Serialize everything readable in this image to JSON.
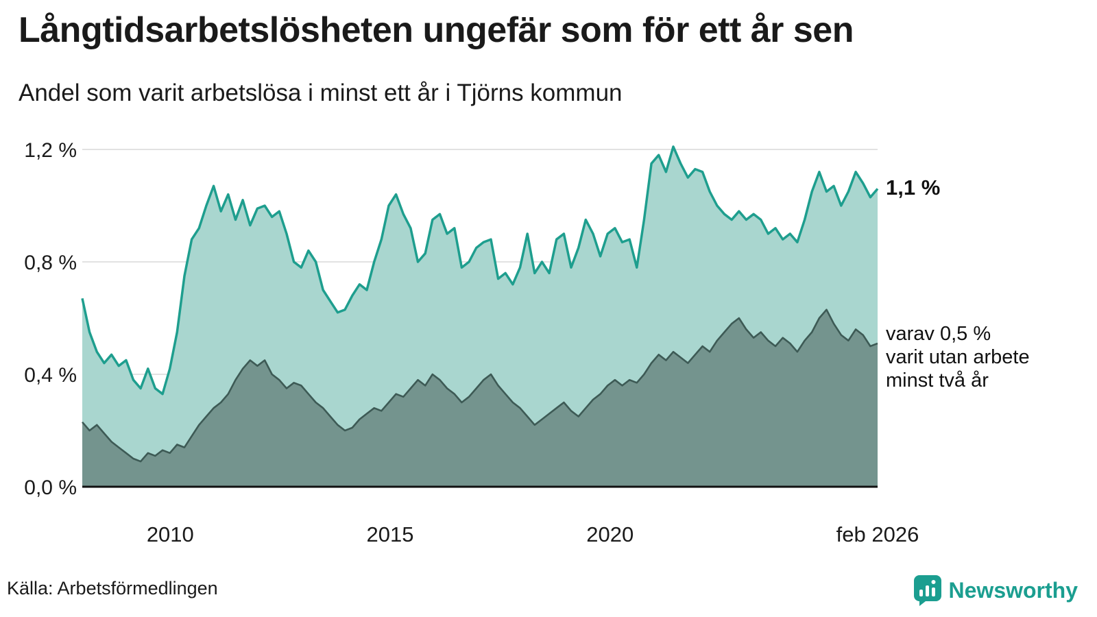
{
  "header": {
    "title": "Långtidsarbetslösheten ungefär som för ett år sen",
    "subtitle": "Andel som varit arbetslösa i minst ett år i Tjörns kommun"
  },
  "annotations": {
    "total_end": "1,1 %",
    "long_line1": "varav 0,5 %",
    "long_line2": "varit utan arbete",
    "long_line3": "minst två år"
  },
  "footer": {
    "source": "Källa: Arbetsförmedlingen",
    "brand": "Newsworthy"
  },
  "colors": {
    "teal_line": "#1e9e8e",
    "teal_fill": "#a9d6cf",
    "dark_line": "#3d5a55",
    "dark_fill": "#74948e",
    "grid": "#d8d8d8",
    "axis": "#111111",
    "text": "#1a1a1a",
    "brand": "#1b9e90"
  },
  "chart_data": {
    "type": "area",
    "title": "Långtidsarbetslösheten ungefär som för ett år sen",
    "subtitle": "Andel som varit arbetslösa i minst ett år i Tjörns kommun",
    "unit": "%",
    "x_start": 2008.0,
    "x_end": 2026.083,
    "ylim": [
      0,
      1.25
    ],
    "grid": true,
    "y_ticks": [
      {
        "value": 1.2,
        "label": "1,2 %"
      },
      {
        "value": 0.8,
        "label": "0,8 %"
      },
      {
        "value": 0.4,
        "label": "0,4 %"
      },
      {
        "value": 0.0,
        "label": "0,0 %"
      }
    ],
    "x_ticks": [
      {
        "value": 2010,
        "label": "2010"
      },
      {
        "value": 2015,
        "label": "2015"
      },
      {
        "value": 2020,
        "label": "2020"
      },
      {
        "value": 2026.083,
        "label": "feb 2026"
      }
    ],
    "series": [
      {
        "name": "Andel som varit arbetslösa minst ett år",
        "end_value_label": "1,1 %",
        "values": [
          0.67,
          0.55,
          0.48,
          0.44,
          0.47,
          0.43,
          0.45,
          0.38,
          0.35,
          0.42,
          0.35,
          0.33,
          0.42,
          0.55,
          0.75,
          0.88,
          0.92,
          1.0,
          1.07,
          0.98,
          1.04,
          0.95,
          1.02,
          0.93,
          0.99,
          1.0,
          0.96,
          0.98,
          0.9,
          0.8,
          0.78,
          0.84,
          0.8,
          0.7,
          0.66,
          0.62,
          0.63,
          0.68,
          0.72,
          0.7,
          0.8,
          0.88,
          1.0,
          1.04,
          0.97,
          0.92,
          0.8,
          0.83,
          0.95,
          0.97,
          0.9,
          0.92,
          0.78,
          0.8,
          0.85,
          0.87,
          0.88,
          0.74,
          0.76,
          0.72,
          0.78,
          0.9,
          0.76,
          0.8,
          0.76,
          0.88,
          0.9,
          0.78,
          0.85,
          0.95,
          0.9,
          0.82,
          0.9,
          0.92,
          0.87,
          0.88,
          0.78,
          0.95,
          1.15,
          1.18,
          1.12,
          1.21,
          1.15,
          1.1,
          1.13,
          1.12,
          1.05,
          1.0,
          0.97,
          0.95,
          0.98,
          0.95,
          0.97,
          0.95,
          0.9,
          0.92,
          0.88,
          0.9,
          0.87,
          0.95,
          1.05,
          1.12,
          1.05,
          1.07,
          1.0,
          1.05,
          1.12,
          1.08,
          1.03,
          1.06
        ]
      },
      {
        "name": "varav utan arbete minst två år",
        "end_value_label": "0,5 %",
        "values": [
          0.23,
          0.2,
          0.22,
          0.19,
          0.16,
          0.14,
          0.12,
          0.1,
          0.09,
          0.12,
          0.11,
          0.13,
          0.12,
          0.15,
          0.14,
          0.18,
          0.22,
          0.25,
          0.28,
          0.3,
          0.33,
          0.38,
          0.42,
          0.45,
          0.43,
          0.45,
          0.4,
          0.38,
          0.35,
          0.37,
          0.36,
          0.33,
          0.3,
          0.28,
          0.25,
          0.22,
          0.2,
          0.21,
          0.24,
          0.26,
          0.28,
          0.27,
          0.3,
          0.33,
          0.32,
          0.35,
          0.38,
          0.36,
          0.4,
          0.38,
          0.35,
          0.33,
          0.3,
          0.32,
          0.35,
          0.38,
          0.4,
          0.36,
          0.33,
          0.3,
          0.28,
          0.25,
          0.22,
          0.24,
          0.26,
          0.28,
          0.3,
          0.27,
          0.25,
          0.28,
          0.31,
          0.33,
          0.36,
          0.38,
          0.36,
          0.38,
          0.37,
          0.4,
          0.44,
          0.47,
          0.45,
          0.48,
          0.46,
          0.44,
          0.47,
          0.5,
          0.48,
          0.52,
          0.55,
          0.58,
          0.6,
          0.56,
          0.53,
          0.55,
          0.52,
          0.5,
          0.53,
          0.51,
          0.48,
          0.52,
          0.55,
          0.6,
          0.63,
          0.58,
          0.54,
          0.52,
          0.56,
          0.54,
          0.5,
          0.51
        ]
      }
    ]
  }
}
